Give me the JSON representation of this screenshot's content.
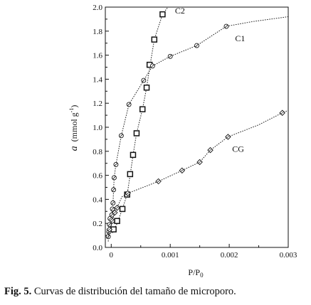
{
  "chart_data": {
    "type": "line",
    "xlabel": "P/P0",
    "xlabel_main": "P/P",
    "xlabel_sub": "0",
    "ylabel_italic": "a",
    "ylabel_unit": "(mmol g",
    "ylabel_sup": "-1",
    "ylabel_close": ")",
    "xlim": [
      -0.0001,
      0.003
    ],
    "ylim": [
      0.0,
      2.0
    ],
    "x_ticks": [
      {
        "value": 0,
        "label": "0"
      },
      {
        "value": 0.001,
        "label": "0.001"
      },
      {
        "value": 0.002,
        "label": "0.002"
      },
      {
        "value": 0.003,
        "label": "0.003"
      }
    ],
    "y_ticks": [
      {
        "value": 0.0,
        "label": "0.0"
      },
      {
        "value": 0.2,
        "label": "0.2"
      },
      {
        "value": 0.4,
        "label": "0.4"
      },
      {
        "value": 0.6,
        "label": "0.6"
      },
      {
        "value": 0.8,
        "label": "0.8"
      },
      {
        "value": 1.0,
        "label": "1.0"
      },
      {
        "value": 1.2,
        "label": "1.2"
      },
      {
        "value": 1.4,
        "label": "1.4"
      },
      {
        "value": 1.6,
        "label": "1.6"
      },
      {
        "value": 1.8,
        "label": "1.8"
      },
      {
        "value": 2.0,
        "label": "2.0"
      }
    ],
    "series": [
      {
        "name": "C2",
        "marker": "square",
        "label_pos": {
          "x": 0.00108,
          "y": 1.97
        },
        "points": [
          [
            4e-05,
            0.15
          ],
          [
            0.0001,
            0.22
          ],
          [
            0.00019,
            0.32
          ],
          [
            0.00027,
            0.44
          ],
          [
            0.00032,
            0.61
          ],
          [
            0.00037,
            0.77
          ],
          [
            0.00043,
            0.95
          ],
          [
            0.00053,
            1.15
          ],
          [
            0.0006,
            1.33
          ],
          [
            0.00065,
            1.52
          ],
          [
            0.00073,
            1.73
          ],
          [
            0.00087,
            1.94
          ]
        ],
        "line": [
          [
            2e-05,
            0.12
          ],
          [
            0.0001,
            0.2
          ],
          [
            0.00019,
            0.32
          ],
          [
            0.00027,
            0.44
          ],
          [
            0.00032,
            0.6
          ],
          [
            0.00037,
            0.77
          ],
          [
            0.00043,
            0.95
          ],
          [
            0.00053,
            1.15
          ],
          [
            0.0006,
            1.33
          ],
          [
            0.00066,
            1.52
          ],
          [
            0.00073,
            1.73
          ],
          [
            0.00087,
            1.94
          ],
          [
            0.00096,
            2.0
          ]
        ]
      },
      {
        "name": "C1",
        "marker": "circle",
        "label_pos": {
          "x": 0.0021,
          "y": 1.74
        },
        "points": [
          [
            -5e-05,
            0.09
          ],
          [
            -4e-05,
            0.13
          ],
          [
            -3e-05,
            0.19
          ],
          [
            -2e-05,
            0.24
          ],
          [
            1e-05,
            0.27
          ],
          [
            2e-05,
            0.32
          ],
          [
            3e-05,
            0.37
          ],
          [
            4e-05,
            0.48
          ],
          [
            5e-05,
            0.58
          ],
          [
            8e-05,
            0.69
          ],
          [
            0.00017,
            0.93
          ],
          [
            0.0003,
            1.19
          ],
          [
            0.00055,
            1.39
          ],
          [
            0.0007,
            1.51
          ],
          [
            0.001,
            1.59
          ],
          [
            0.00145,
            1.68
          ],
          [
            0.00195,
            1.84
          ]
        ],
        "line": [
          [
            -5e-05,
            0.05
          ],
          [
            -4e-05,
            0.13
          ],
          [
            -3e-05,
            0.19
          ],
          [
            -2e-05,
            0.24
          ],
          [
            1e-05,
            0.27
          ],
          [
            2e-05,
            0.32
          ],
          [
            3e-05,
            0.37
          ],
          [
            4e-05,
            0.48
          ],
          [
            5e-05,
            0.58
          ],
          [
            8e-05,
            0.69
          ],
          [
            0.00017,
            0.93
          ],
          [
            0.0003,
            1.19
          ],
          [
            0.00055,
            1.39
          ],
          [
            0.0007,
            1.51
          ],
          [
            0.001,
            1.59
          ],
          [
            0.00145,
            1.68
          ],
          [
            0.00195,
            1.84
          ],
          [
            0.0024,
            1.88
          ],
          [
            0.003,
            1.92
          ]
        ]
      },
      {
        "name": "CG",
        "marker": "diamond",
        "label_pos": {
          "x": 0.00205,
          "y": 0.82
        },
        "points": [
          [
            -3e-05,
            0.15
          ],
          [
            2e-05,
            0.22
          ],
          [
            6e-05,
            0.29
          ],
          [
            0.0001,
            0.33
          ],
          [
            0.00028,
            0.45
          ],
          [
            0.0008,
            0.55
          ],
          [
            0.0012,
            0.64
          ],
          [
            0.0015,
            0.71
          ],
          [
            0.00168,
            0.81
          ],
          [
            0.00198,
            0.92
          ],
          [
            0.0029,
            1.12
          ]
        ],
        "line": [
          [
            -5e-05,
            0.08
          ],
          [
            -3e-05,
            0.15
          ],
          [
            2e-05,
            0.22
          ],
          [
            6e-05,
            0.29
          ],
          [
            0.0001,
            0.33
          ],
          [
            0.00018,
            0.42
          ],
          [
            0.00028,
            0.45
          ],
          [
            0.0008,
            0.55
          ],
          [
            0.0012,
            0.64
          ],
          [
            0.0015,
            0.71
          ],
          [
            0.00168,
            0.81
          ],
          [
            0.00198,
            0.92
          ],
          [
            0.0025,
            1.02
          ],
          [
            0.0029,
            1.12
          ],
          [
            0.003,
            1.14
          ]
        ]
      }
    ]
  },
  "caption": {
    "label": "Fig. 5.",
    "text": " Curvas de distribución del tamaño de microporo."
  }
}
